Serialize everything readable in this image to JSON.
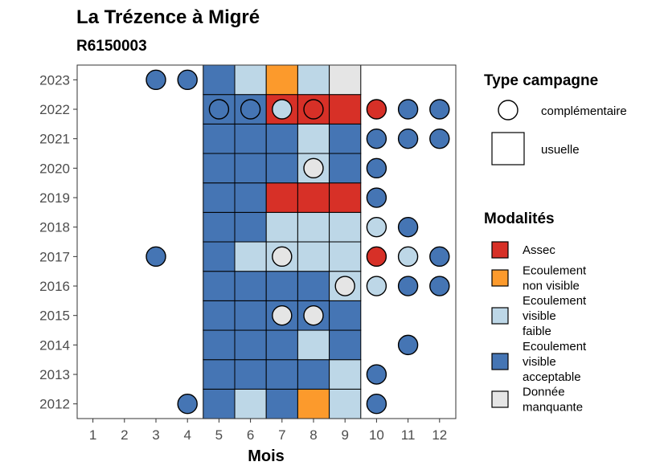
{
  "chart_data": {
    "type": "heatmap",
    "title": "La Trézence à Migré",
    "subtitle": "R6150003",
    "xlabel": "Mois",
    "ylabel": "",
    "x_ticks": [
      "1",
      "2",
      "3",
      "4",
      "5",
      "6",
      "7",
      "8",
      "9",
      "10",
      "11",
      "12"
    ],
    "y_ticks": [
      "2012",
      "2013",
      "2014",
      "2015",
      "2016",
      "2017",
      "2018",
      "2019",
      "2020",
      "2021",
      "2022",
      "2023"
    ],
    "legend_campagne": {
      "title": "Type campagne",
      "items": [
        {
          "key": "complementaire",
          "label": "complémentaire"
        },
        {
          "key": "usuelle",
          "label": "usuelle"
        }
      ]
    },
    "legend_modalites": {
      "title": "Modalités",
      "items": [
        {
          "key": "assec",
          "lines": [
            "Assec"
          ],
          "color": "#d73027"
        },
        {
          "key": "ecoulement_non_visible",
          "lines": [
            "Ecoulement",
            "non visible"
          ],
          "color": "#fc9a2c"
        },
        {
          "key": "ecoulement_visible_faible",
          "lines": [
            "Ecoulement",
            "visible",
            "faible"
          ],
          "color": "#bdd7e7"
        },
        {
          "key": "ecoulement_visible_acceptable",
          "lines": [
            "Ecoulement",
            "visible",
            "acceptable"
          ],
          "color": "#4575b4"
        },
        {
          "key": "donnee_manquante",
          "lines": [
            "Donnée",
            "manquante"
          ],
          "color": "#e5e5e5"
        }
      ]
    },
    "usuelle": {
      "months": [
        5,
        6,
        7,
        8,
        9
      ],
      "rows": {
        "2023": [
          "ecoulement_visible_acceptable",
          "ecoulement_visible_faible",
          "ecoulement_non_visible",
          "ecoulement_visible_faible",
          "donnee_manquante"
        ],
        "2022": [
          "ecoulement_visible_acceptable",
          "ecoulement_visible_acceptable",
          "assec",
          "assec",
          "assec"
        ],
        "2021": [
          "ecoulement_visible_acceptable",
          "ecoulement_visible_acceptable",
          "ecoulement_visible_acceptable",
          "ecoulement_visible_faible",
          "ecoulement_visible_acceptable"
        ],
        "2020": [
          "ecoulement_visible_acceptable",
          "ecoulement_visible_acceptable",
          "ecoulement_visible_acceptable",
          "ecoulement_visible_faible",
          "ecoulement_visible_acceptable"
        ],
        "2019": [
          "ecoulement_visible_acceptable",
          "ecoulement_visible_acceptable",
          "assec",
          "assec",
          "assec"
        ],
        "2018": [
          "ecoulement_visible_acceptable",
          "ecoulement_visible_acceptable",
          "ecoulement_visible_faible",
          "ecoulement_visible_faible",
          "ecoulement_visible_faible"
        ],
        "2017": [
          "ecoulement_visible_acceptable",
          "ecoulement_visible_faible",
          "ecoulement_visible_faible",
          "ecoulement_visible_faible",
          "ecoulement_visible_faible"
        ],
        "2016": [
          "ecoulement_visible_acceptable",
          "ecoulement_visible_acceptable",
          "ecoulement_visible_acceptable",
          "ecoulement_visible_acceptable",
          "ecoulement_visible_faible"
        ],
        "2015": [
          "ecoulement_visible_acceptable",
          "ecoulement_visible_acceptable",
          "ecoulement_visible_acceptable",
          "ecoulement_visible_acceptable",
          "ecoulement_visible_acceptable"
        ],
        "2014": [
          "ecoulement_visible_acceptable",
          "ecoulement_visible_acceptable",
          "ecoulement_visible_acceptable",
          "ecoulement_visible_faible",
          "ecoulement_visible_acceptable"
        ],
        "2013": [
          "ecoulement_visible_acceptable",
          "ecoulement_visible_acceptable",
          "ecoulement_visible_acceptable",
          "ecoulement_visible_acceptable",
          "ecoulement_visible_faible"
        ],
        "2012": [
          "ecoulement_visible_acceptable",
          "ecoulement_visible_faible",
          "ecoulement_visible_acceptable",
          "ecoulement_non_visible",
          "ecoulement_visible_faible"
        ]
      }
    },
    "complementaire": [
      {
        "year": "2023",
        "month": 3,
        "modalite": "ecoulement_visible_acceptable"
      },
      {
        "year": "2023",
        "month": 4,
        "modalite": "ecoulement_visible_acceptable"
      },
      {
        "year": "2022",
        "month": 5,
        "modalite": "ecoulement_visible_acceptable"
      },
      {
        "year": "2022",
        "month": 6,
        "modalite": "ecoulement_visible_acceptable"
      },
      {
        "year": "2022",
        "month": 7,
        "modalite": "ecoulement_visible_faible"
      },
      {
        "year": "2022",
        "month": 8,
        "modalite": "assec"
      },
      {
        "year": "2022",
        "month": 10,
        "modalite": "assec"
      },
      {
        "year": "2022",
        "month": 11,
        "modalite": "ecoulement_visible_acceptable"
      },
      {
        "year": "2022",
        "month": 12,
        "modalite": "ecoulement_visible_acceptable"
      },
      {
        "year": "2021",
        "month": 10,
        "modalite": "ecoulement_visible_acceptable"
      },
      {
        "year": "2021",
        "month": 11,
        "modalite": "ecoulement_visible_acceptable"
      },
      {
        "year": "2021",
        "month": 12,
        "modalite": "ecoulement_visible_acceptable"
      },
      {
        "year": "2020",
        "month": 8,
        "modalite": "donnee_manquante"
      },
      {
        "year": "2020",
        "month": 10,
        "modalite": "ecoulement_visible_acceptable"
      },
      {
        "year": "2019",
        "month": 10,
        "modalite": "ecoulement_visible_acceptable"
      },
      {
        "year": "2018",
        "month": 10,
        "modalite": "ecoulement_visible_faible"
      },
      {
        "year": "2018",
        "month": 11,
        "modalite": "ecoulement_visible_acceptable"
      },
      {
        "year": "2017",
        "month": 3,
        "modalite": "ecoulement_visible_acceptable"
      },
      {
        "year": "2017",
        "month": 7,
        "modalite": "donnee_manquante"
      },
      {
        "year": "2017",
        "month": 10,
        "modalite": "assec"
      },
      {
        "year": "2017",
        "month": 11,
        "modalite": "ecoulement_visible_faible"
      },
      {
        "year": "2017",
        "month": 12,
        "modalite": "ecoulement_visible_acceptable"
      },
      {
        "year": "2016",
        "month": 9,
        "modalite": "donnee_manquante"
      },
      {
        "year": "2016",
        "month": 10,
        "modalite": "ecoulement_visible_faible"
      },
      {
        "year": "2016",
        "month": 11,
        "modalite": "ecoulement_visible_acceptable"
      },
      {
        "year": "2016",
        "month": 12,
        "modalite": "ecoulement_visible_acceptable"
      },
      {
        "year": "2015",
        "month": 7,
        "modalite": "donnee_manquante"
      },
      {
        "year": "2015",
        "month": 8,
        "modalite": "donnee_manquante"
      },
      {
        "year": "2014",
        "month": 11,
        "modalite": "ecoulement_visible_acceptable"
      },
      {
        "year": "2013",
        "month": 10,
        "modalite": "ecoulement_visible_acceptable"
      },
      {
        "year": "2012",
        "month": 4,
        "modalite": "ecoulement_visible_acceptable"
      },
      {
        "year": "2012",
        "month": 10,
        "modalite": "ecoulement_visible_acceptable"
      }
    ]
  }
}
